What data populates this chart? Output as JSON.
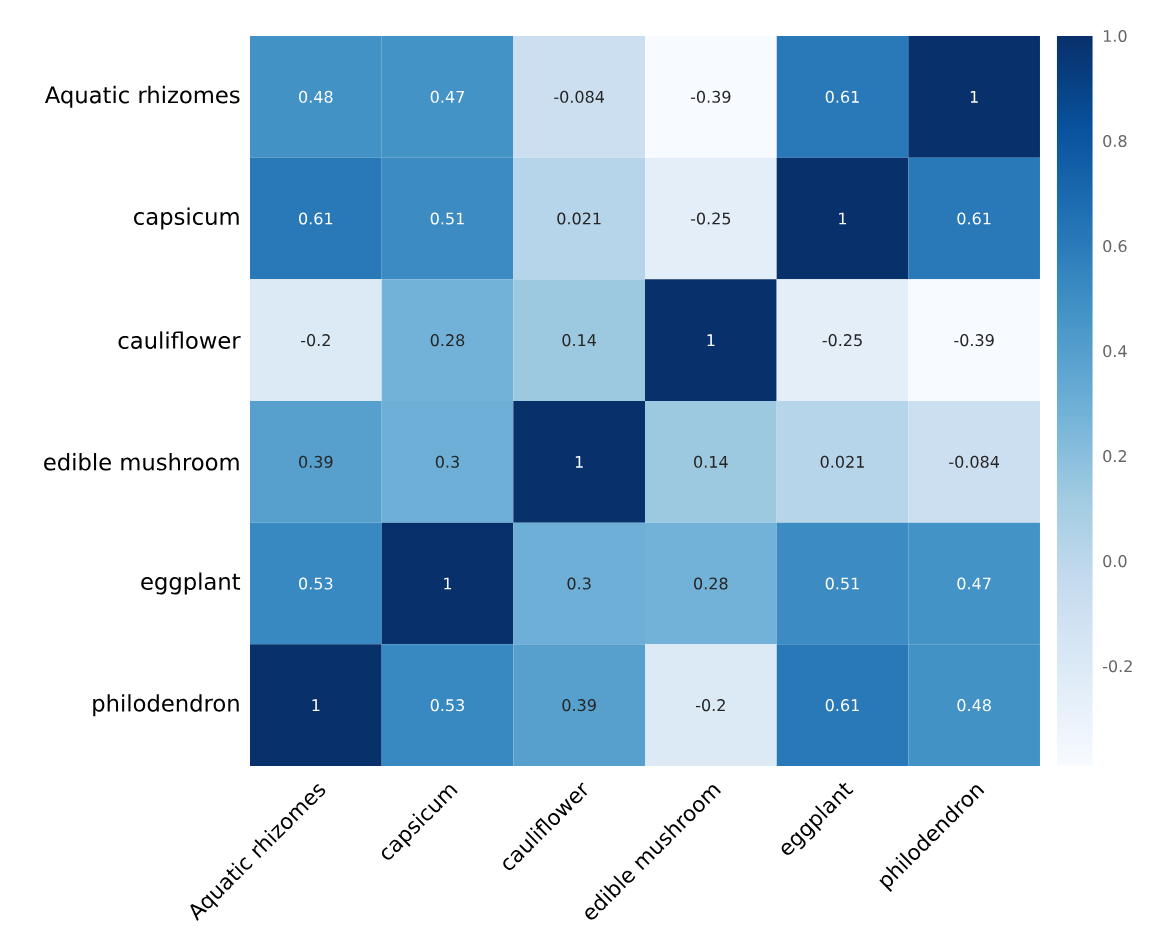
{
  "chart_data": {
    "type": "heatmap",
    "categories": [
      "Aquatic rhizomes",
      "capsicum",
      "cauliflower",
      "edible mushroom",
      "eggplant",
      "philodendron"
    ],
    "y_categories": [
      "Aquatic rhizomes",
      "capsicum",
      "cauliflower",
      "edible mushroom",
      "eggplant",
      "philodendron"
    ],
    "cells": [
      [
        0.48,
        0.47,
        -0.084,
        -0.39,
        0.61,
        1
      ],
      [
        0.61,
        0.51,
        0.021,
        -0.25,
        1,
        0.61
      ],
      [
        -0.2,
        0.28,
        0.14,
        1,
        -0.25,
        -0.39
      ],
      [
        0.39,
        0.3,
        1,
        0.14,
        0.021,
        -0.084
      ],
      [
        0.53,
        1,
        0.3,
        0.28,
        0.51,
        0.47
      ],
      [
        1,
        0.53,
        0.39,
        -0.2,
        0.61,
        0.48
      ]
    ],
    "clim": [
      -0.39,
      1
    ],
    "data_labels": true,
    "cticks": [
      {
        "value": 1,
        "label": "1.0"
      },
      0.8,
      0.6,
      0.4,
      0.2,
      {
        "value": 0,
        "label": "0.0"
      },
      -0.2
    ]
  }
}
